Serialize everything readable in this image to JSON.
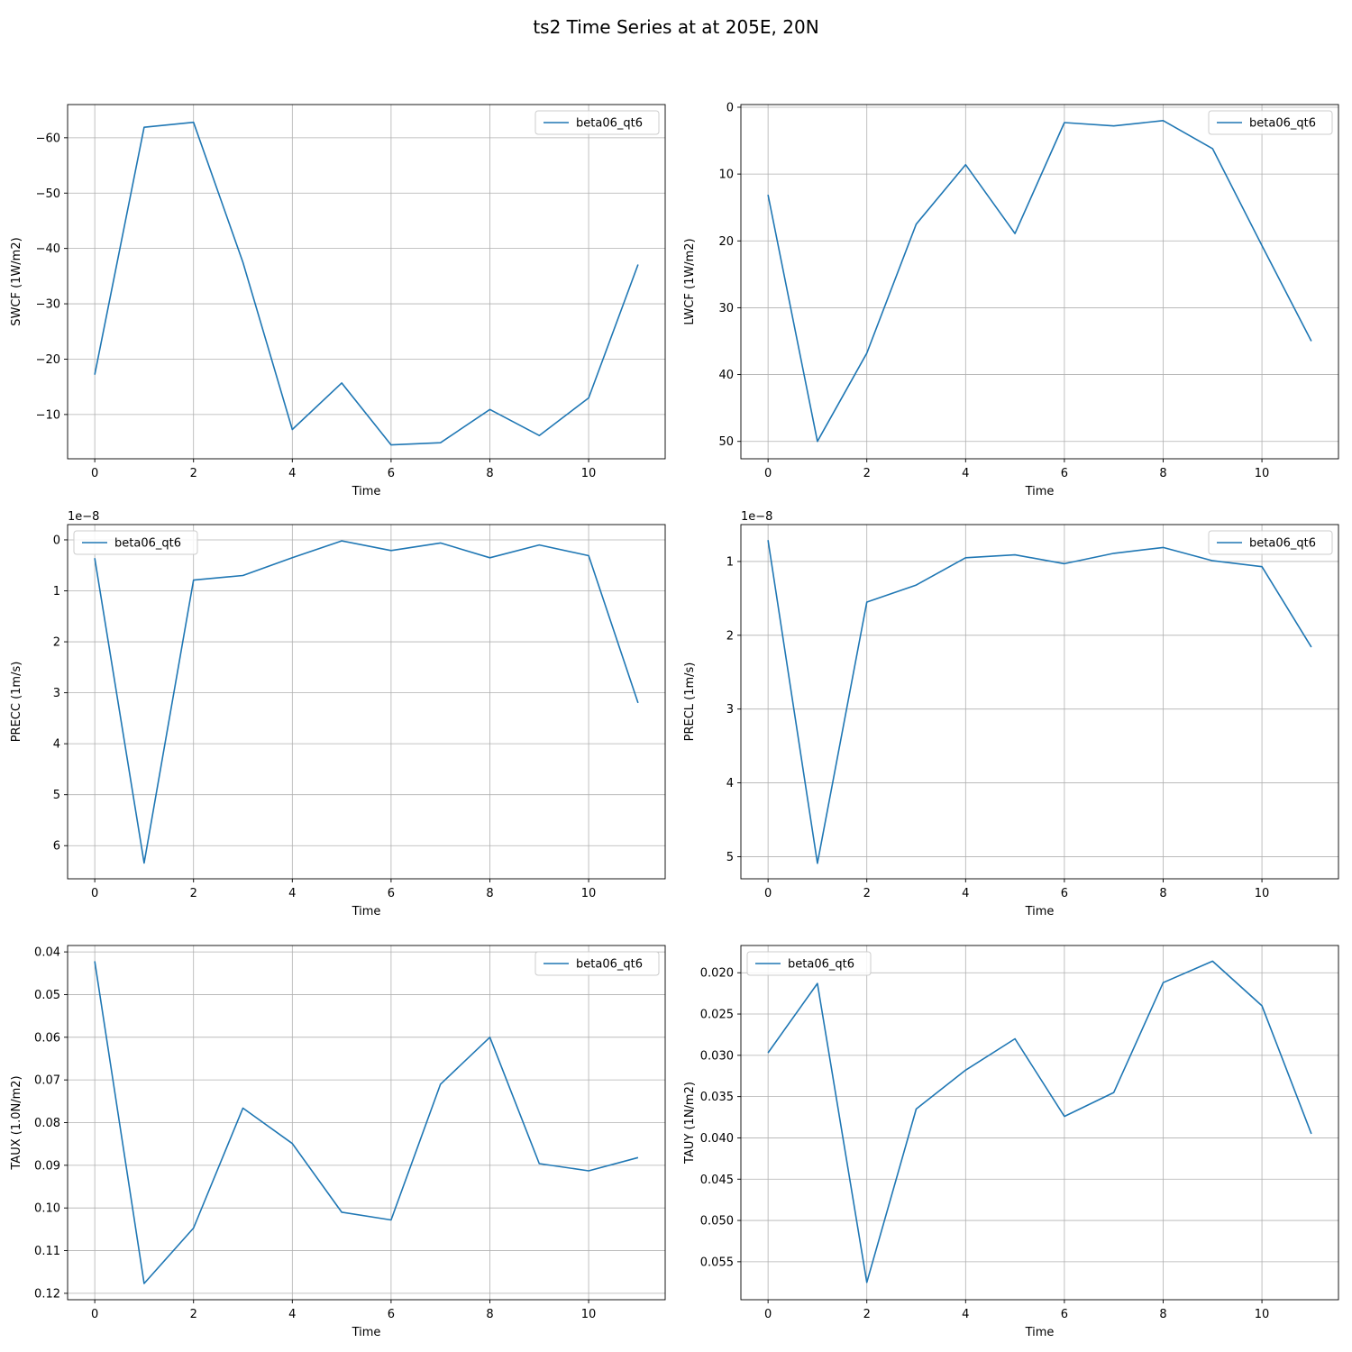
{
  "figure": {
    "title": "ts2 Time Series at at 205E, 20N",
    "series_color": "#1f77b4"
  },
  "chart_data": [
    {
      "type": "line",
      "xlabel": "Time",
      "ylabel": "SWCF (1W/m2)",
      "x": [
        0,
        1,
        2,
        3,
        4,
        5,
        6,
        7,
        8,
        9,
        10,
        11
      ],
      "series": [
        {
          "name": "beta06_qt6",
          "values": [
            -17.2,
            -61.9,
            -62.8,
            -37.5,
            -7.3,
            -15.7,
            -4.5,
            -4.9,
            -10.9,
            -6.2,
            -13.0,
            -37.1
          ]
        }
      ],
      "xlim": [
        -0.55,
        11.55
      ],
      "ylim": [
        -2.0,
        -66.0
      ],
      "xticks": [
        0,
        2,
        4,
        6,
        8,
        10
      ],
      "xtick_labels": [
        "0",
        "2",
        "4",
        "6",
        "8",
        "10"
      ],
      "yticks": [
        -10,
        -20,
        -30,
        -40,
        -50,
        -60
      ],
      "ytick_labels": [
        "−10",
        "−20",
        "−30",
        "−40",
        "−50",
        "−60"
      ],
      "offset_text": "",
      "legend_loc": "upper right",
      "grid": true
    },
    {
      "type": "line",
      "xlabel": "Time",
      "ylabel": "LWCF (1W/m2)",
      "x": [
        0,
        1,
        2,
        3,
        4,
        5,
        6,
        7,
        8,
        9,
        10,
        11
      ],
      "series": [
        {
          "name": "beta06_qt6",
          "values": [
            13.1,
            50.0,
            36.8,
            17.5,
            8.6,
            18.9,
            2.3,
            2.8,
            2.0,
            6.2,
            20.7,
            35.0
          ]
        }
      ],
      "xlim": [
        -0.55,
        11.55
      ],
      "ylim": [
        52.6,
        -0.4
      ],
      "xticks": [
        0,
        2,
        4,
        6,
        8,
        10
      ],
      "xtick_labels": [
        "0",
        "2",
        "4",
        "6",
        "8",
        "10"
      ],
      "yticks": [
        0,
        10,
        20,
        30,
        40,
        50
      ],
      "ytick_labels": [
        "0",
        "10",
        "20",
        "30",
        "40",
        "50"
      ],
      "offset_text": "",
      "legend_loc": "upper right",
      "grid": true
    },
    {
      "type": "line",
      "xlabel": "Time",
      "ylabel": "PRECC (1m/s)",
      "x": [
        0,
        1,
        2,
        3,
        4,
        5,
        6,
        7,
        8,
        9,
        10,
        11
      ],
      "series": [
        {
          "name": "beta06_qt6",
          "values": [
            0.36,
            6.34,
            0.79,
            0.7,
            0.35,
            0.02,
            0.21,
            0.06,
            0.35,
            0.1,
            0.31,
            3.2
          ]
        }
      ],
      "xlim": [
        -0.55,
        11.55
      ],
      "ylim": [
        6.65,
        -0.3
      ],
      "xticks": [
        0,
        2,
        4,
        6,
        8,
        10
      ],
      "xtick_labels": [
        "0",
        "2",
        "4",
        "6",
        "8",
        "10"
      ],
      "yticks": [
        0,
        1,
        2,
        3,
        4,
        5,
        6
      ],
      "ytick_labels": [
        "0",
        "1",
        "2",
        "3",
        "4",
        "5",
        "6"
      ],
      "offset_text": "1e−8",
      "legend_loc": "upper left",
      "grid": true
    },
    {
      "type": "line",
      "xlabel": "Time",
      "ylabel": "PRECL (1m/s)",
      "x": [
        0,
        1,
        2,
        3,
        4,
        5,
        6,
        7,
        8,
        9,
        10,
        11
      ],
      "series": [
        {
          "name": "beta06_qt6",
          "values": [
            0.71,
            5.09,
            1.55,
            1.32,
            0.95,
            0.91,
            1.03,
            0.89,
            0.81,
            0.99,
            1.07,
            2.16
          ]
        }
      ],
      "xlim": [
        -0.55,
        11.55
      ],
      "ylim": [
        5.3,
        0.5
      ],
      "xticks": [
        0,
        2,
        4,
        6,
        8,
        10
      ],
      "xtick_labels": [
        "0",
        "2",
        "4",
        "6",
        "8",
        "10"
      ],
      "yticks": [
        1,
        2,
        3,
        4,
        5
      ],
      "ytick_labels": [
        "1",
        "2",
        "3",
        "4",
        "5"
      ],
      "offset_text": "1e−8",
      "legend_loc": "upper right",
      "grid": true
    },
    {
      "type": "line",
      "xlabel": "Time",
      "ylabel": "TAUX (1.0N/m2)",
      "x": [
        0,
        1,
        2,
        3,
        4,
        5,
        6,
        7,
        8,
        9,
        10,
        11
      ],
      "series": [
        {
          "name": "beta06_qt6",
          "values": [
            0.0422,
            0.1177,
            0.1047,
            0.0766,
            0.0849,
            0.101,
            0.1028,
            0.071,
            0.06,
            0.0896,
            0.0913,
            0.0882
          ]
        }
      ],
      "xlim": [
        -0.55,
        11.55
      ],
      "ylim": [
        0.1215,
        0.0385
      ],
      "xticks": [
        0,
        2,
        4,
        6,
        8,
        10
      ],
      "xtick_labels": [
        "0",
        "2",
        "4",
        "6",
        "8",
        "10"
      ],
      "yticks": [
        0.04,
        0.05,
        0.06,
        0.07,
        0.08,
        0.09,
        0.1,
        0.11,
        0.12
      ],
      "ytick_labels": [
        "0.04",
        "0.05",
        "0.06",
        "0.07",
        "0.08",
        "0.09",
        "0.10",
        "0.11",
        "0.12"
      ],
      "offset_text": "",
      "legend_loc": "upper right",
      "grid": true
    },
    {
      "type": "line",
      "xlabel": "Time",
      "ylabel": "TAUY (1N/m2)",
      "x": [
        0,
        1,
        2,
        3,
        4,
        5,
        6,
        7,
        8,
        9,
        10,
        11
      ],
      "series": [
        {
          "name": "beta06_qt6",
          "values": [
            0.0297,
            0.0213,
            0.0575,
            0.0365,
            0.0318,
            0.028,
            0.0374,
            0.0345,
            0.0212,
            0.0186,
            0.024,
            0.0395
          ]
        }
      ],
      "xlim": [
        -0.55,
        11.55
      ],
      "ylim": [
        0.0596,
        0.0167
      ],
      "xticks": [
        0,
        2,
        4,
        6,
        8,
        10
      ],
      "xtick_labels": [
        "0",
        "2",
        "4",
        "6",
        "8",
        "10"
      ],
      "yticks": [
        0.02,
        0.025,
        0.03,
        0.035,
        0.04,
        0.045,
        0.05,
        0.055
      ],
      "ytick_labels": [
        "0.020",
        "0.025",
        "0.030",
        "0.035",
        "0.040",
        "0.045",
        "0.050",
        "0.055"
      ],
      "offset_text": "",
      "legend_loc": "upper left",
      "grid": true
    }
  ]
}
